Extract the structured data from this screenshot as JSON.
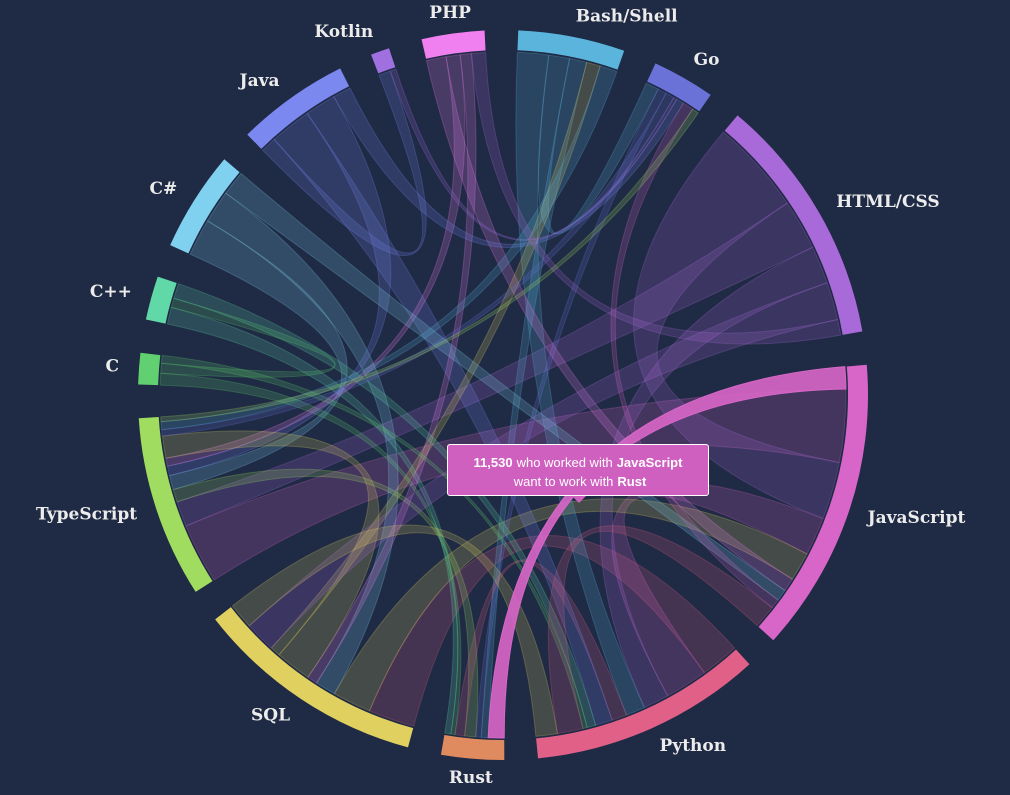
{
  "chart_data": {
    "type": "chord",
    "groups": [
      {
        "name": "Bash/Shell",
        "color": "#5ab4dc",
        "value": 34000
      },
      {
        "name": "Go",
        "color": "#6a72d8",
        "value": 20000
      },
      {
        "name": "HTML/CSS",
        "color": "#a86ad8",
        "value": 80000
      },
      {
        "name": "JavaScript",
        "color": "#d866c8",
        "value": 94000
      },
      {
        "name": "Python",
        "color": "#e06088",
        "value": 74000
      },
      {
        "name": "Rust",
        "color": "#e08a60",
        "value": 20000
      },
      {
        "name": "SQL",
        "color": "#e0d060",
        "value": 74000
      },
      {
        "name": "TypeScript",
        "color": "#a0dc60",
        "value": 58000
      },
      {
        "name": "C",
        "color": "#60d070",
        "value": 10000
      },
      {
        "name": "C++",
        "color": "#60d8a8",
        "value": 14000
      },
      {
        "name": "C#",
        "color": "#80d0f0",
        "value": 32000
      },
      {
        "name": "Java",
        "color": "#7a88f0",
        "value": 36000
      },
      {
        "name": "Kotlin",
        "color": "#a070e0",
        "value": 6000
      },
      {
        "name": "PHP",
        "color": "#f080f0",
        "value": 20000
      }
    ],
    "links": [
      {
        "source": 3,
        "target": 5,
        "value": 11530,
        "value_label": "11,530"
      },
      {
        "source": 3,
        "target": 7,
        "value": 38000
      },
      {
        "source": 2,
        "target": 3,
        "value": 30000
      },
      {
        "source": 2,
        "target": 7,
        "value": 16000
      },
      {
        "source": 4,
        "target": 6,
        "value": 18000
      },
      {
        "source": 3,
        "target": 4,
        "value": 20000
      },
      {
        "source": 6,
        "target": 3,
        "value": 15000
      },
      {
        "source": 2,
        "target": 4,
        "value": 12000
      },
      {
        "source": 0,
        "target": 4,
        "value": 9000
      },
      {
        "source": 0,
        "target": 1,
        "value": 6000
      },
      {
        "source": 0,
        "target": 5,
        "value": 5000
      },
      {
        "source": 1,
        "target": 5,
        "value": 4000
      },
      {
        "source": 7,
        "target": 5,
        "value": 8000
      },
      {
        "source": 4,
        "target": 5,
        "value": 7000
      },
      {
        "source": 8,
        "target": 5,
        "value": 3000
      },
      {
        "source": 9,
        "target": 5,
        "value": 4500
      },
      {
        "source": 10,
        "target": 7,
        "value": 9000
      },
      {
        "source": 10,
        "target": 6,
        "value": 8000
      },
      {
        "source": 11,
        "target": 12,
        "value": 3000
      },
      {
        "source": 11,
        "target": 4,
        "value": 8000
      },
      {
        "source": 11,
        "target": 7,
        "value": 6000
      },
      {
        "source": 13,
        "target": 3,
        "value": 7000
      },
      {
        "source": 13,
        "target": 7,
        "value": 5000
      },
      {
        "source": 13,
        "target": 6,
        "value": 4000
      },
      {
        "source": 6,
        "target": 7,
        "value": 14000
      },
      {
        "source": 6,
        "target": 0,
        "value": 4000
      },
      {
        "source": 2,
        "target": 6,
        "value": 12000
      },
      {
        "source": 8,
        "target": 9,
        "value": 2500
      },
      {
        "source": 9,
        "target": 4,
        "value": 4000
      },
      {
        "source": 8,
        "target": 4,
        "value": 2000
      },
      {
        "source": 1,
        "target": 7,
        "value": 4000
      },
      {
        "source": 12,
        "target": 1,
        "value": 1500
      },
      {
        "source": 10,
        "target": 3,
        "value": 6000
      },
      {
        "source": 11,
        "target": 1,
        "value": 3500
      },
      {
        "source": 0,
        "target": 7,
        "value": 5000
      },
      {
        "source": 2,
        "target": 13,
        "value": 5000
      },
      {
        "source": 3,
        "target": 1,
        "value": 5000
      },
      {
        "source": 4,
        "target": 3,
        "value": 12000
      },
      {
        "source": 7,
        "target": 1,
        "value": 3000
      },
      {
        "source": 6,
        "target": 4,
        "value": 10000
      }
    ],
    "highlight": 0,
    "tooltip": {
      "line1": "who worked with",
      "line2": "want to work with"
    }
  }
}
